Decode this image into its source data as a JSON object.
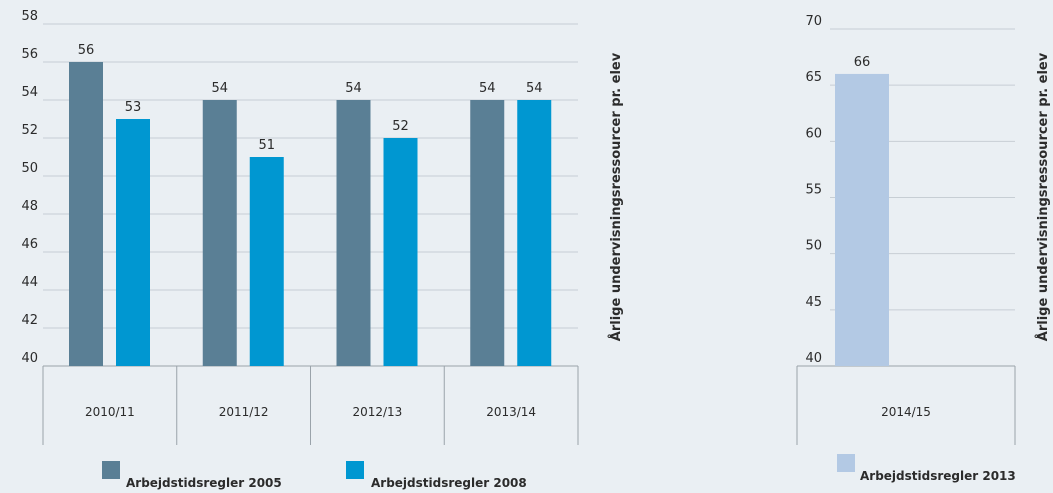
{
  "chart_data": [
    {
      "type": "bar",
      "categories": [
        "2010/11",
        "2011/12",
        "2012/13",
        "2013/14"
      ],
      "series": [
        {
          "name": "Arbejdstidsregler  2005",
          "values": [
            56,
            54,
            54,
            54
          ],
          "color": "#5a7f95"
        },
        {
          "name": "Arbejdstidsregler 2008",
          "values": [
            53,
            51,
            52,
            54
          ],
          "color": "#0097d1"
        }
      ],
      "yticks": [
        "40",
        "42",
        "44",
        "46",
        "48",
        "50",
        "52",
        "54",
        "56",
        "58"
      ],
      "ylim": [
        40,
        58
      ],
      "ylabel": "Årlige undervisningsressourcer pr. elev",
      "grid": true,
      "legend": "bottom"
    },
    {
      "type": "bar",
      "categories": [
        "2014/15"
      ],
      "series": [
        {
          "name": "Arbejdstidsregler 2013",
          "values": [
            66
          ],
          "color": "#b3c9e4"
        }
      ],
      "yticks": [
        "40",
        "45",
        "50",
        "55",
        "60",
        "65",
        "70"
      ],
      "ylim": [
        40,
        70
      ],
      "ylabel": "Årlige undervisningsressourcer pr. elev",
      "grid": true,
      "legend": "bottom"
    }
  ]
}
